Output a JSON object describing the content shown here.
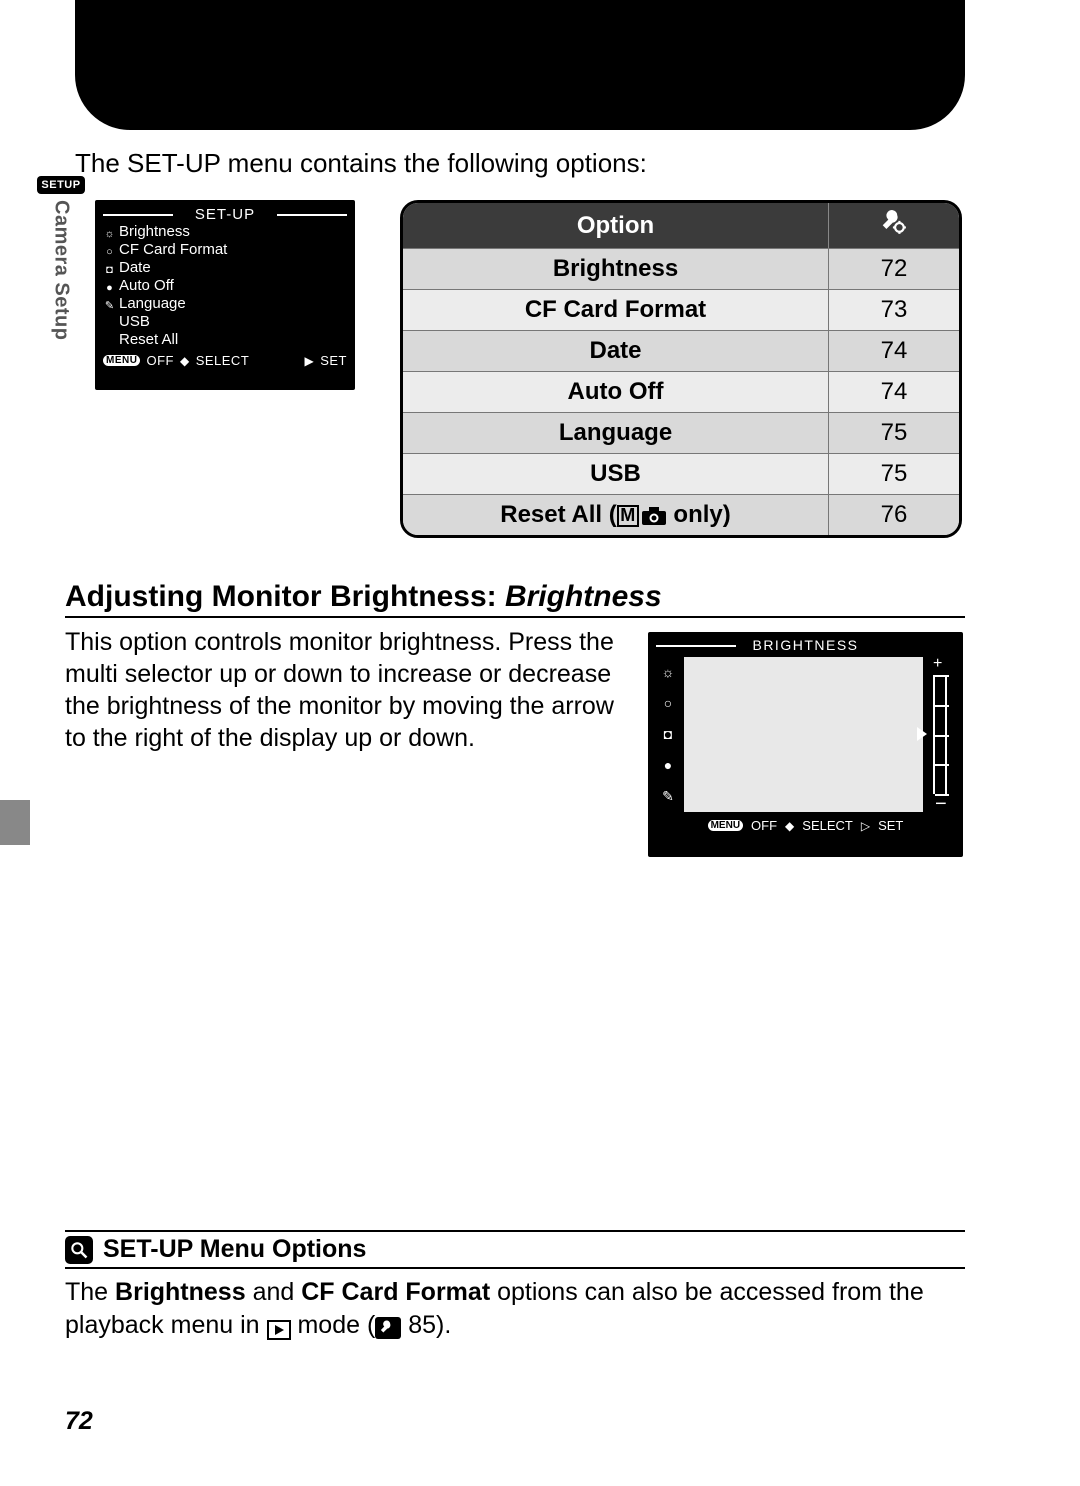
{
  "intro": "The SET-UP menu contains the following options:",
  "sideTab": {
    "badge": "SETUP",
    "label": "Camera Setup"
  },
  "lcdSetup": {
    "title": "SET-UP",
    "items": [
      {
        "label": "Brightness",
        "icon": "sun"
      },
      {
        "label": "CF Card Format",
        "icon": "circle"
      },
      {
        "label": "Date",
        "icon": "camera"
      },
      {
        "label": "Auto Off",
        "icon": "dot"
      },
      {
        "label": "Language",
        "icon": "pencil"
      },
      {
        "label": "USB",
        "icon": "none"
      },
      {
        "label": "Reset All",
        "icon": "none"
      }
    ],
    "bar": {
      "menu": "MENU",
      "off": "OFF",
      "select": "SELECT",
      "set": "SET"
    }
  },
  "optionsTable": {
    "headers": {
      "option": "Option"
    },
    "rows": [
      {
        "label": "Brightness",
        "page": "72",
        "shade": "light"
      },
      {
        "label": "CF Card Format",
        "page": "73",
        "shade": "lighter"
      },
      {
        "label": "Date",
        "page": "74",
        "shade": "light"
      },
      {
        "label": "Auto Off",
        "page": "74",
        "shade": "lighter"
      },
      {
        "label": "Language",
        "page": "75",
        "shade": "light"
      },
      {
        "label": "USB",
        "page": "75",
        "shade": "lighter"
      }
    ],
    "resetRow": {
      "prefix": "Reset All (",
      "suffix": " only)",
      "page": "76",
      "shade": "light"
    }
  },
  "section": {
    "headingPlain": "Adjusting Monitor Brightness: ",
    "headingItalic": "Brightness",
    "body": "This option controls monitor brightness.  Press the multi selector up or down to increase or decrease the brightness of the monitor by moving the arrow to the right of the display up or down."
  },
  "lcdBright": {
    "title": "BRIGHTNESS",
    "bar": {
      "menu": "MENU",
      "off": "OFF",
      "select": "SELECT",
      "set": "SET"
    },
    "plus": "+",
    "minus": "−"
  },
  "note": {
    "heading": "SET-UP Menu Options",
    "body1": "The ",
    "bold1": "Brightness",
    "body2": " and ",
    "bold2": "CF Card Format",
    "body3": " options can also be accessed from the playback menu in ",
    "body4": " mode (",
    "ref": " 85).",
    "pageRef": "85"
  },
  "pageNum": "72",
  "colors": {
    "tableHeader": "#3b3b3b",
    "rowLight": "#d9d9d9",
    "rowLighter": "#ececec"
  }
}
